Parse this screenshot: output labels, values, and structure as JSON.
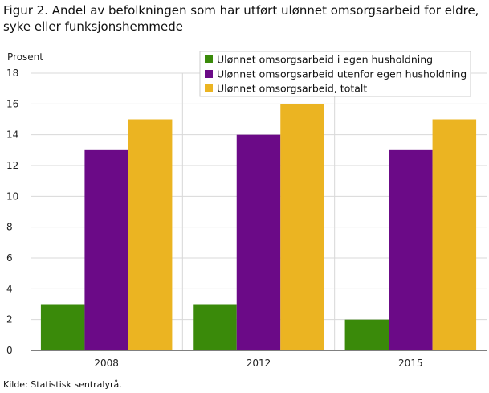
{
  "title": "Figur 2. Andel av befolkningen som har utført ulønnet omsorgsarbeid for eldre, syke eller funksjonshemmede",
  "source": "Kilde: Statistisk sentralyrå.",
  "chart_data": {
    "type": "bar",
    "title": "Figur 2. Andel av befolkningen som har utført ulønnet omsorgsarbeid for eldre, syke eller funksjonshemmede",
    "ylabel": "Prosent",
    "xlabel": "",
    "ylim": [
      0,
      18
    ],
    "yticks": [
      0,
      2,
      4,
      6,
      8,
      10,
      12,
      14,
      16,
      18
    ],
    "grid": true,
    "legend_position": "top-right",
    "categories": [
      "2008",
      "2012",
      "2015"
    ],
    "series": [
      {
        "name": "Ulønnet omsorgsarbeid i egen husholdning",
        "color": "#3a8a0a",
        "values": [
          3,
          3,
          2
        ]
      },
      {
        "name": "Ulønnet omsorgsarbeid utenfor egen husholdning",
        "color": "#6b0a87",
        "values": [
          13,
          14,
          13
        ]
      },
      {
        "name": "Ulønnet omsorgsarbeid, totalt",
        "color": "#ebb422",
        "values": [
          15,
          16,
          15
        ]
      }
    ]
  }
}
